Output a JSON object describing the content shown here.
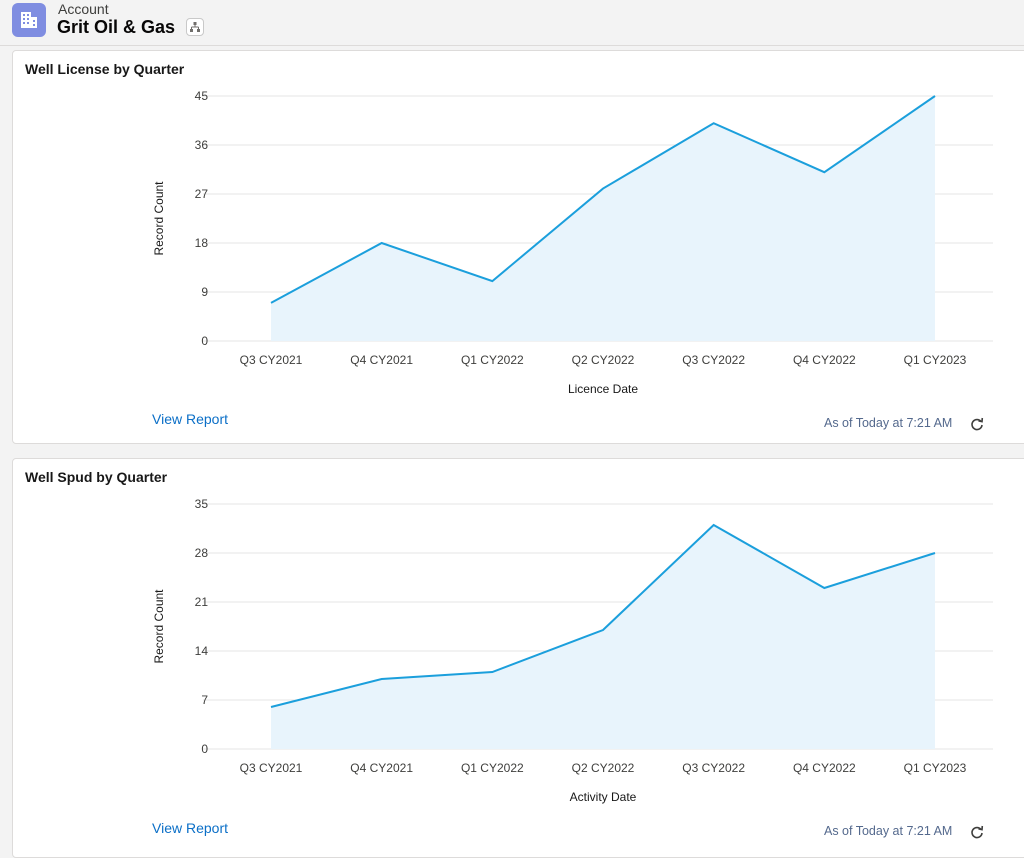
{
  "header": {
    "label": "Account",
    "title": "Grit Oil & Gas",
    "icon": "account-building-icon",
    "hierarchy_icon": "hierarchy-icon"
  },
  "colors": {
    "line": "#1b9fdc",
    "area": "#e8f4fc",
    "grid": "#e5e5e5",
    "link": "#0b6fc7",
    "account_icon_bg": "#7f8de1"
  },
  "cards": [
    {
      "title": "Well License by Quarter",
      "view_report": "View Report",
      "as_of": "As of Today at 7:21 AM",
      "refresh_icon": "refresh-icon"
    },
    {
      "title": "Well Spud by Quarter",
      "view_report": "View Report",
      "as_of": "As of Today at 7:21 AM",
      "refresh_icon": "refresh-icon"
    }
  ],
  "chart_data": [
    {
      "type": "area",
      "title": "Well License by Quarter",
      "xlabel": "Licence Date",
      "ylabel": "Record Count",
      "categories": [
        "Q3 CY2021",
        "Q4 CY2021",
        "Q1 CY2022",
        "Q2 CY2022",
        "Q3 CY2022",
        "Q4 CY2022",
        "Q1 CY2023"
      ],
      "values": [
        7,
        18,
        11,
        28,
        40,
        31,
        45
      ],
      "yticks": [
        0,
        9,
        18,
        27,
        36,
        45
      ],
      "ylim": [
        0,
        45
      ],
      "grid": true
    },
    {
      "type": "area",
      "title": "Well Spud by Quarter",
      "xlabel": "Activity Date",
      "ylabel": "Record Count",
      "categories": [
        "Q3 CY2021",
        "Q4 CY2021",
        "Q1 CY2022",
        "Q2 CY2022",
        "Q3 CY2022",
        "Q4 CY2022",
        "Q1 CY2023"
      ],
      "values": [
        6,
        10,
        11,
        17,
        32,
        23,
        28
      ],
      "yticks": [
        0,
        7,
        14,
        21,
        28,
        35
      ],
      "ylim": [
        0,
        35
      ],
      "grid": true
    }
  ]
}
